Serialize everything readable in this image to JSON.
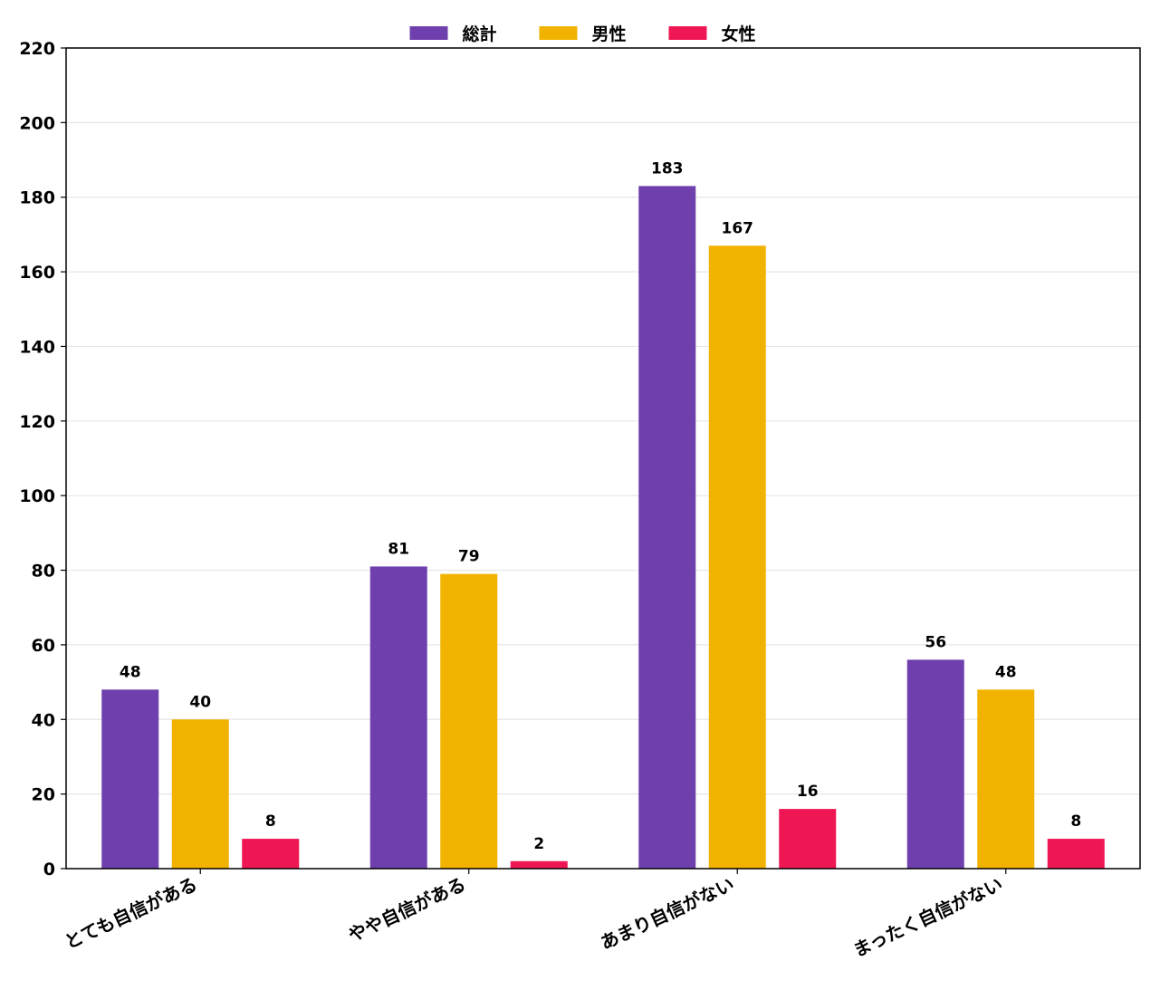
{
  "chart_data": {
    "type": "bar",
    "title": "",
    "xlabel": "",
    "ylabel": "",
    "ylim": [
      0,
      220
    ],
    "yticks": [
      0,
      20,
      40,
      60,
      80,
      100,
      120,
      140,
      160,
      180,
      200,
      220
    ],
    "grid": "horizontal",
    "legend_position": "top-center",
    "categories": [
      "とても自信がある",
      "やや自信がある",
      "あまり自信がない",
      "まったく自信がない"
    ],
    "series": [
      {
        "name": "総計",
        "color": "#6f40ad",
        "values": [
          48,
          81,
          183,
          56
        ]
      },
      {
        "name": "男性",
        "color": "#f2b300",
        "values": [
          40,
          79,
          167,
          48
        ]
      },
      {
        "name": "女性",
        "color": "#ef1654",
        "values": [
          8,
          2,
          16,
          8
        ]
      }
    ]
  }
}
